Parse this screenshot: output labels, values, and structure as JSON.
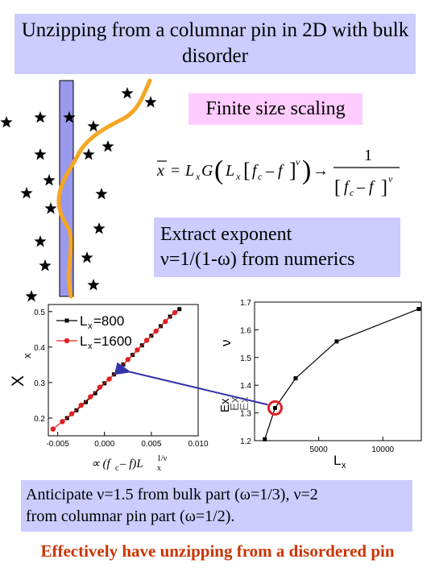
{
  "title": "Unzipping from a columnar pin in 2D with bulk disorder",
  "finite_size_label": "Finite size scaling",
  "formula": {
    "lhs_symbol": "x",
    "equals": "=",
    "L": "L",
    "x_sub": "x",
    "G": "G",
    "f_c": "f",
    "c_sub": "c",
    "minus_f": "– f",
    "nu": "ν",
    "arrow": "→",
    "one": "1"
  },
  "extract_text": [
    "Extract exponent",
    "ν=1/(1-ω)  from numerics"
  ],
  "anticipate_text": [
    "Anticipate ν=1.5 from bulk part (ω=1/3), ν=2",
    "from columnar pin part (ω=1/2)."
  ],
  "conclusion": "Effectively have unzipping from a disordered pin",
  "colors": {
    "title_bg": "#ccccff",
    "fss_bg": "#ffccff",
    "path": "#f5a623",
    "pin": "#9999ee",
    "conclusion": "#cc3300",
    "arrow": "#3333aa",
    "highlight": "#e02020",
    "series_red": "#e02020"
  },
  "left_plot": {
    "ylabel": "x",
    "ylabel_big": "X",
    "xlabel": "∝ (f",
    "xlabel_c": "c",
    "xlabel_rest": " – f)L",
    "xlabel_sub": "x",
    "xlabel_exp": "1/ν"
  },
  "right_plot": {
    "ylabel": "ν",
    "xlabel": "L",
    "xlabel_sub": "x",
    "overlap_labels": [
      "Ex",
      "Ex",
      "Ex"
    ]
  },
  "chart_data": [
    {
      "type": "scatter",
      "xlim": [
        -0.006,
        0.01
      ],
      "ylim": [
        0.15,
        0.52
      ],
      "x_ticks": [
        "-0.005",
        "0.000",
        "0.005",
        "0.010"
      ],
      "y_ticks": [
        "0.2",
        "0.3",
        "0.4",
        "0.5"
      ],
      "legend_position": "top-left",
      "series": [
        {
          "name": "L",
          "name_sub": "x",
          "name_rest": "=800",
          "color": "#000000",
          "marker": "square",
          "x": [
            -0.004,
            -0.003,
            -0.002,
            -0.001,
            0.0,
            0.001,
            0.002,
            0.003,
            0.004,
            0.005,
            0.006,
            0.007,
            0.008
          ],
          "y": [
            0.2,
            0.222,
            0.245,
            0.27,
            0.298,
            0.323,
            0.351,
            0.378,
            0.405,
            0.432,
            0.459,
            0.486,
            0.507
          ]
        },
        {
          "name": "L",
          "name_sub": "x",
          "name_rest": "=1600",
          "color": "#e02020",
          "marker": "circle",
          "x": [
            -0.0055,
            -0.0045,
            -0.0035,
            -0.0025,
            -0.0015,
            -0.0005,
            0.0005,
            0.0015,
            0.0025,
            0.0035,
            0.0045,
            0.0055,
            0.0065,
            0.0075
          ],
          "y": [
            0.169,
            0.19,
            0.212,
            0.236,
            0.26,
            0.287,
            0.31,
            0.337,
            0.365,
            0.392,
            0.419,
            0.445,
            0.472,
            0.497
          ]
        }
      ]
    },
    {
      "type": "line",
      "xlim": [
        0,
        13000
      ],
      "ylim": [
        1.2,
        1.7
      ],
      "x_ticks": [
        "5000",
        "10000"
      ],
      "y_ticks": [
        "1.2",
        "1.3",
        "1.4",
        "1.5",
        "1.6",
        "1.7"
      ],
      "series": [
        {
          "name": "",
          "x": [
            800,
            1600,
            3200,
            6400,
            12800
          ],
          "y": [
            1.205,
            1.318,
            1.425,
            1.558,
            1.675
          ]
        }
      ],
      "highlight_point": {
        "x": 1600,
        "y": 1.318
      }
    }
  ]
}
